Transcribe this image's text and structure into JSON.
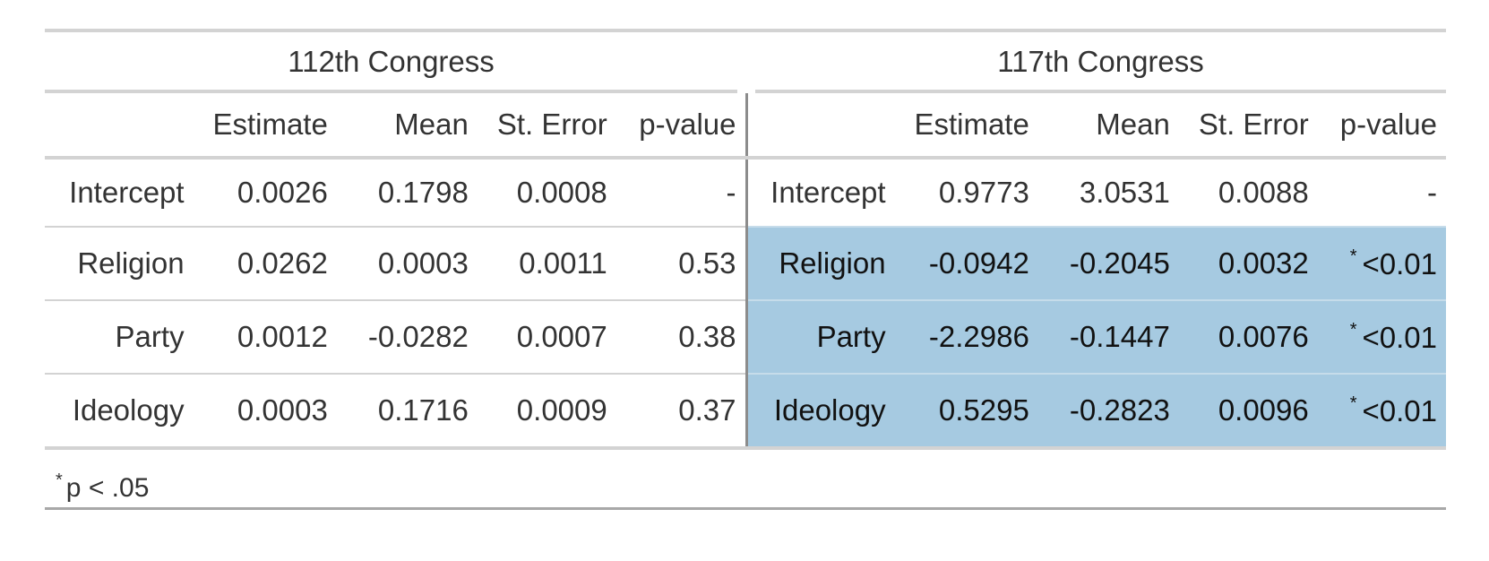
{
  "groups": [
    {
      "title": "112th Congress",
      "columns": [
        "Estimate",
        "Mean",
        "St. Error",
        "p-value"
      ],
      "rows": [
        {
          "label": "Intercept",
          "estimate": "0.0026",
          "mean": "0.1798",
          "se": "0.0008",
          "p": "-",
          "star": "",
          "highlight": false
        },
        {
          "label": "Religion",
          "estimate": "0.0262",
          "mean": "0.0003",
          "se": "0.0011",
          "p": "0.53",
          "star": "",
          "highlight": false
        },
        {
          "label": "Party",
          "estimate": "0.0012",
          "mean": "-0.0282",
          "se": "0.0007",
          "p": "0.38",
          "star": "",
          "highlight": false
        },
        {
          "label": "Ideology",
          "estimate": "0.0003",
          "mean": "0.1716",
          "se": "0.0009",
          "p": "0.37",
          "star": "",
          "highlight": false
        }
      ]
    },
    {
      "title": "117th Congress",
      "columns": [
        "Estimate",
        "Mean",
        "St. Error",
        "p-value"
      ],
      "rows": [
        {
          "label": "Intercept",
          "estimate": "0.9773",
          "mean": "3.0531",
          "se": "0.0088",
          "p": "-",
          "star": "",
          "highlight": false
        },
        {
          "label": "Religion",
          "estimate": "-0.0942",
          "mean": "-0.2045",
          "se": "0.0032",
          "p": "<0.01",
          "star": "*",
          "highlight": true
        },
        {
          "label": "Party",
          "estimate": "-2.2986",
          "mean": "-0.1447",
          "se": "0.0076",
          "p": "<0.01",
          "star": "*",
          "highlight": true
        },
        {
          "label": "Ideology",
          "estimate": "0.5295",
          "mean": "-0.2823",
          "se": "0.0096",
          "p": "<0.01",
          "star": "*",
          "highlight": true
        }
      ]
    }
  ],
  "footnote": {
    "mark": "*",
    "text": "p < .05"
  },
  "colors": {
    "highlight": "#a6cae1",
    "rule": "#d3d3d3",
    "divider": "#8c8c8c"
  }
}
